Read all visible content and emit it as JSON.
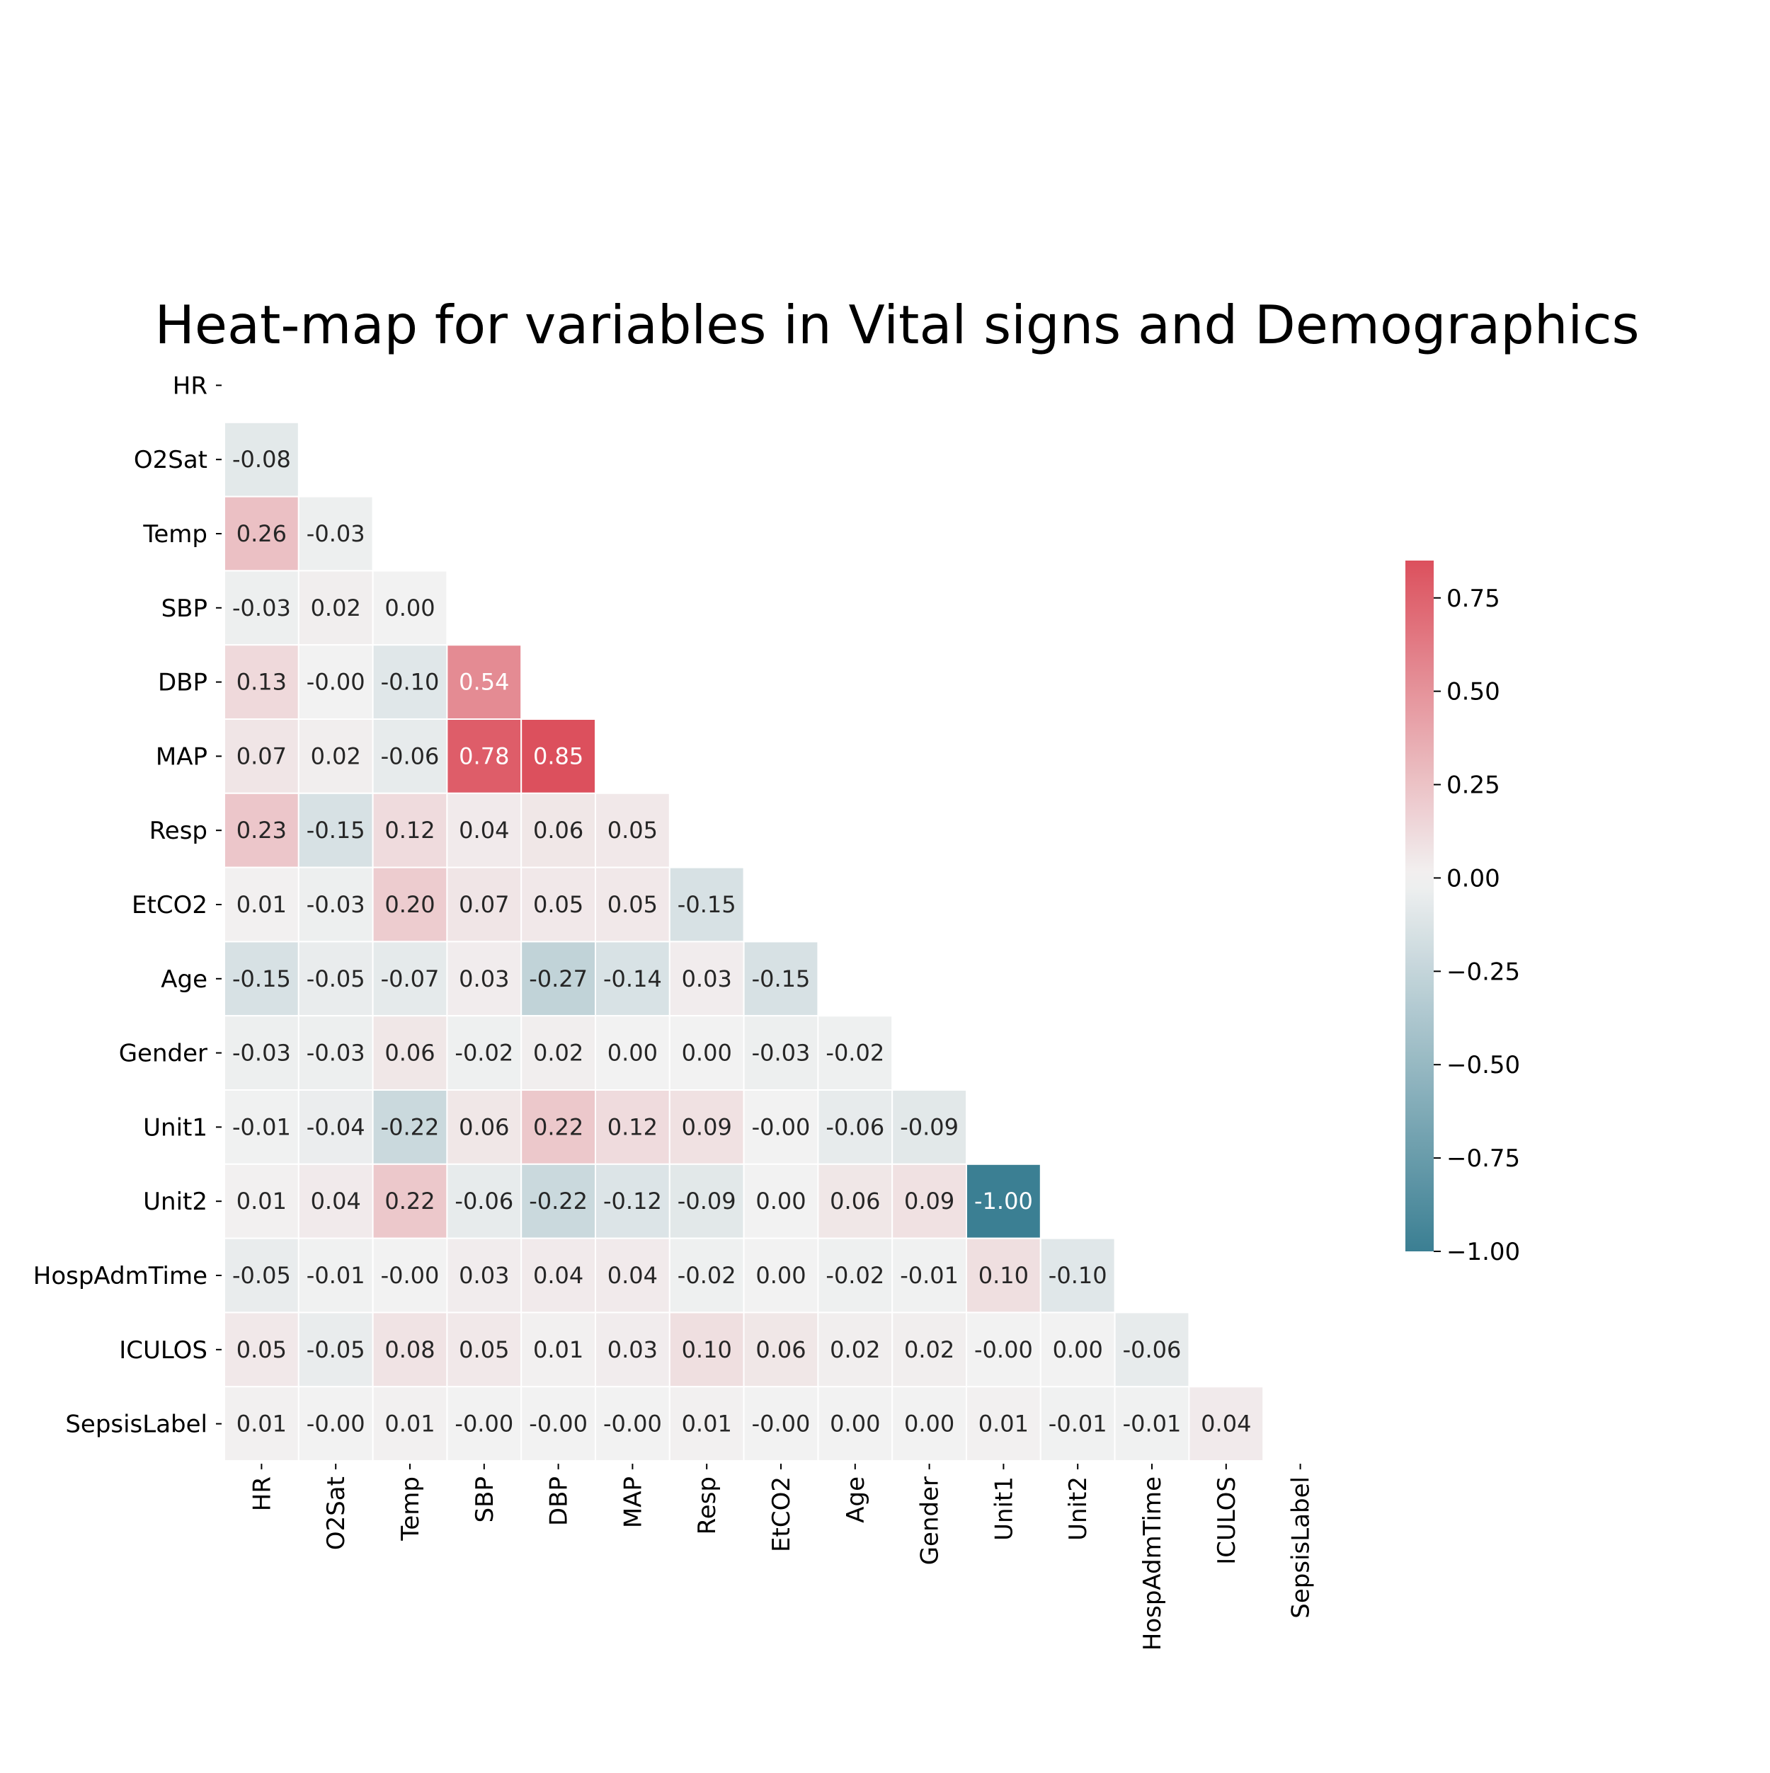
{
  "chart_data": {
    "type": "heatmap",
    "title": "Heat-map for variables in Vital signs and Demographics",
    "variables": [
      "HR",
      "O2Sat",
      "Temp",
      "SBP",
      "DBP",
      "MAP",
      "Resp",
      "EtCO2",
      "Age",
      "Gender",
      "Unit1",
      "Unit2",
      "HospAdmTime",
      "ICULOS",
      "SepsisLabel"
    ],
    "lower_triangle": [
      [],
      [
        -0.08
      ],
      [
        0.26,
        -0.03
      ],
      [
        -0.03,
        0.02,
        0.0
      ],
      [
        0.13,
        -0.0,
        -0.1,
        0.54
      ],
      [
        0.07,
        0.02,
        -0.06,
        0.78,
        0.85
      ],
      [
        0.23,
        -0.15,
        0.12,
        0.04,
        0.06,
        0.05
      ],
      [
        0.01,
        -0.03,
        0.2,
        0.07,
        0.05,
        0.05,
        -0.15
      ],
      [
        -0.15,
        -0.05,
        -0.07,
        0.03,
        -0.27,
        -0.14,
        0.03,
        -0.15
      ],
      [
        -0.03,
        -0.03,
        0.06,
        -0.02,
        0.02,
        0.0,
        0.0,
        -0.03,
        -0.02
      ],
      [
        -0.01,
        -0.04,
        -0.22,
        0.06,
        0.22,
        0.12,
        0.09,
        -0.0,
        -0.06,
        -0.09
      ],
      [
        0.01,
        0.04,
        0.22,
        -0.06,
        -0.22,
        -0.12,
        -0.09,
        0.0,
        0.06,
        0.09,
        -1.0
      ],
      [
        -0.05,
        -0.01,
        -0.0,
        0.03,
        0.04,
        0.04,
        -0.02,
        0.0,
        -0.02,
        -0.01,
        0.1,
        -0.1
      ],
      [
        0.05,
        -0.05,
        0.08,
        0.05,
        0.01,
        0.03,
        0.1,
        0.06,
        0.02,
        0.02,
        -0.0,
        0.0,
        -0.06
      ],
      [
        0.01,
        -0.0,
        0.01,
        -0.0,
        -0.0,
        -0.0,
        0.01,
        -0.0,
        0.0,
        0.0,
        0.01,
        -0.01,
        -0.01,
        0.04
      ]
    ],
    "cell_labels": [
      [],
      [
        "-0.08"
      ],
      [
        "0.26",
        "-0.03"
      ],
      [
        "-0.03",
        "0.02",
        "0.00"
      ],
      [
        "0.13",
        "-0.00",
        "-0.10",
        "0.54"
      ],
      [
        "0.07",
        "0.02",
        "-0.06",
        "0.78",
        "0.85"
      ],
      [
        "0.23",
        "-0.15",
        "0.12",
        "0.04",
        "0.06",
        "0.05"
      ],
      [
        "0.01",
        "-0.03",
        "0.20",
        "0.07",
        "0.05",
        "0.05",
        "-0.15"
      ],
      [
        "-0.15",
        "-0.05",
        "-0.07",
        "0.03",
        "-0.27",
        "-0.14",
        "0.03",
        "-0.15"
      ],
      [
        "-0.03",
        "-0.03",
        "0.06",
        "-0.02",
        "0.02",
        "0.00",
        "0.00",
        "-0.03",
        "-0.02"
      ],
      [
        "-0.01",
        "-0.04",
        "-0.22",
        "0.06",
        "0.22",
        "0.12",
        "0.09",
        "-0.00",
        "-0.06",
        "-0.09"
      ],
      [
        "0.01",
        "0.04",
        "0.22",
        "-0.06",
        "-0.22",
        "-0.12",
        "-0.09",
        "0.00",
        "0.06",
        "0.09",
        "-1.00"
      ],
      [
        "-0.05",
        "-0.01",
        "-0.00",
        "0.03",
        "0.04",
        "0.04",
        "-0.02",
        "0.00",
        "-0.02",
        "-0.01",
        "0.10",
        "-0.10"
      ],
      [
        "0.05",
        "-0.05",
        "0.08",
        "0.05",
        "0.01",
        "0.03",
        "0.10",
        "0.06",
        "0.02",
        "0.02",
        "-0.00",
        "0.00",
        "-0.06"
      ],
      [
        "0.01",
        "-0.00",
        "0.01",
        "-0.00",
        "-0.00",
        "-0.00",
        "0.01",
        "-0.00",
        "0.00",
        "0.00",
        "0.01",
        "-0.01",
        "-0.01",
        "0.04"
      ]
    ],
    "colorbar": {
      "range": [
        -1.0,
        0.85
      ],
      "ticks": [
        0.75,
        0.5,
        0.25,
        0.0,
        -0.25,
        -0.5,
        -0.75,
        -1.0
      ],
      "tick_labels": [
        "0.75",
        "0.50",
        "0.25",
        "0.00",
        "−0.25",
        "−0.50",
        "−0.75",
        "−1.00"
      ],
      "colormap": "diverging",
      "colors": {
        "negative": "#3b7f93",
        "center": "#f2f2f2",
        "positive": "#dc505d"
      }
    },
    "mask": "upper triangle and diagonal",
    "cell_border_color": "#ffffff"
  }
}
